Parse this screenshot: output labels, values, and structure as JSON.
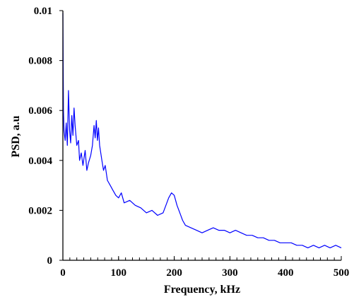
{
  "chart_data": {
    "type": "line",
    "title": "",
    "xlabel": "Frequency, kHz",
    "ylabel": "PSD, a.u",
    "xlim": [
      0,
      500
    ],
    "ylim": [
      0,
      0.01
    ],
    "x_ticks": [
      0,
      100,
      200,
      300,
      400,
      500
    ],
    "x_tick_labels": [
      "0",
      "100",
      "200",
      "300",
      "400",
      "500"
    ],
    "x_minor_tick_step": 12.5,
    "y_ticks": [
      0,
      0.002,
      0.004,
      0.006,
      0.008,
      0.01
    ],
    "y_tick_labels": [
      "0",
      "0.002",
      "0.004",
      "0.006",
      "0.008",
      "0.01"
    ],
    "grid": false,
    "legend": "none",
    "series": [
      {
        "color": "#0000FF",
        "x": [
          0,
          1,
          2,
          4,
          6,
          8,
          10,
          12,
          14,
          16,
          18,
          20,
          22,
          25,
          28,
          30,
          33,
          36,
          40,
          43,
          46,
          50,
          53,
          56,
          58,
          60,
          62,
          64,
          66,
          68,
          70,
          73,
          76,
          80,
          85,
          90,
          95,
          100,
          105,
          110,
          120,
          130,
          140,
          150,
          160,
          170,
          180,
          185,
          190,
          195,
          200,
          205,
          210,
          215,
          220,
          230,
          240,
          250,
          260,
          270,
          280,
          290,
          300,
          310,
          320,
          330,
          340,
          350,
          360,
          370,
          380,
          390,
          400,
          410,
          420,
          430,
          440,
          450,
          460,
          470,
          480,
          490,
          500
        ],
        "y": [
          0.0099,
          0.006,
          0.0052,
          0.0048,
          0.0055,
          0.0046,
          0.0068,
          0.0052,
          0.0047,
          0.0058,
          0.005,
          0.0061,
          0.0054,
          0.0046,
          0.0048,
          0.004,
          0.0043,
          0.0038,
          0.0044,
          0.0036,
          0.0039,
          0.0042,
          0.0046,
          0.0054,
          0.0049,
          0.0056,
          0.0048,
          0.0053,
          0.0046,
          0.0043,
          0.004,
          0.0036,
          0.0038,
          0.0032,
          0.003,
          0.0028,
          0.0026,
          0.0025,
          0.0027,
          0.0023,
          0.0024,
          0.0022,
          0.0021,
          0.0019,
          0.002,
          0.0018,
          0.0019,
          0.0022,
          0.0025,
          0.0027,
          0.0026,
          0.0022,
          0.0019,
          0.0016,
          0.0014,
          0.0013,
          0.0012,
          0.0011,
          0.0012,
          0.0013,
          0.0012,
          0.0012,
          0.0011,
          0.0012,
          0.0011,
          0.001,
          0.001,
          0.0009,
          0.0009,
          0.0008,
          0.0008,
          0.0007,
          0.0007,
          0.0007,
          0.0006,
          0.0006,
          0.0005,
          0.0006,
          0.0005,
          0.0006,
          0.0005,
          0.0006,
          0.0005
        ]
      }
    ]
  }
}
